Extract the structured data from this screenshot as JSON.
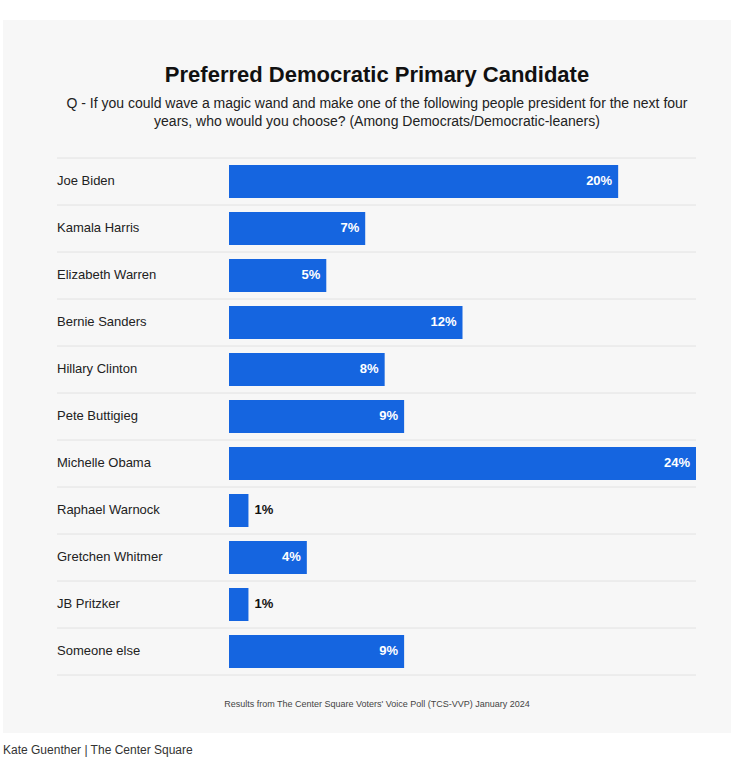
{
  "chart_data": {
    "type": "bar",
    "orientation": "horizontal",
    "title": "Preferred Democratic Primary Candidate",
    "subtitle": "Q - If you could wave a magic wand and make one of the following people president for the next four years, who would you choose? (Among Democrats/Democratic-leaners)",
    "categories": [
      "Joe Biden",
      "Kamala Harris",
      "Elizabeth Warren",
      "Bernie Sanders",
      "Hillary Clinton",
      "Pete Buttigieg",
      "Michelle Obama",
      "Raphael Warnock",
      "Gretchen Whitmer",
      "JB Pritzker",
      "Someone else"
    ],
    "values": [
      20,
      7,
      5,
      12,
      8,
      9,
      24,
      1,
      4,
      1,
      9
    ],
    "value_labels": [
      "20%",
      "7%",
      "5%",
      "12%",
      "8%",
      "9%",
      "24%",
      "1%",
      "4%",
      "1%",
      "9%"
    ],
    "color": "#1565e0",
    "xlim": [
      0,
      24
    ],
    "grid": true,
    "data_labels": true,
    "tick_labels": "y",
    "source": "Results from The Center Square Voters' Voice Poll (TCS-VVP) January 2024",
    "credit": "Kate Guenther | The Center Square"
  }
}
